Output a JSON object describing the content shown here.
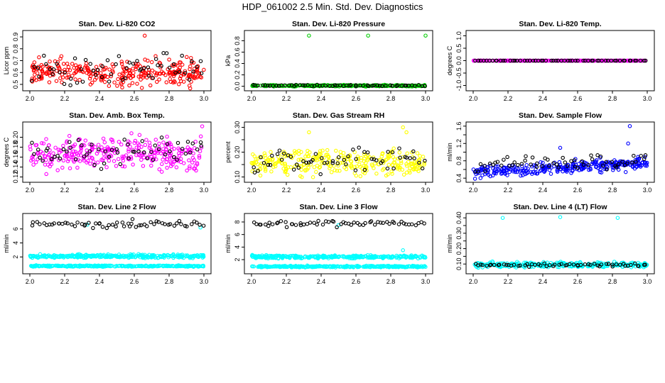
{
  "figure_title": "HDP_061002  2.5 Min. Std. Dev. Diagnostics",
  "colors": {
    "black": "#000000",
    "red": "#ff0000",
    "green": "#00cc00",
    "magenta": "#ff00ff",
    "yellow": "#ffff00",
    "blue": "#0000ff",
    "cyan": "#00ffff"
  },
  "chart_data": [
    {
      "type": "scatter",
      "title": "Stan. Dev. Li-820 CO2",
      "xlabel": "",
      "ylabel": "Licor ppm",
      "xlim": [
        2.0,
        3.0
      ],
      "ylim": [
        0.47,
        0.93
      ],
      "xticks": [
        "2.0",
        "2.2",
        "2.4",
        "2.6",
        "2.8",
        "3.0"
      ],
      "yticks": [
        0.5,
        0.6,
        0.7,
        0.8,
        0.9
      ],
      "ytick_labels": [
        "0.5",
        "0.6",
        "0.7",
        "0.8",
        "0.9"
      ],
      "series": [
        {
          "name": "bulk",
          "color": "red",
          "band": [
            0.6,
            0.05
          ],
          "extra": [
            [
              2.66,
              0.91
            ]
          ]
        },
        {
          "name": "highlight",
          "color": "black",
          "band": [
            0.62,
            0.06
          ],
          "extra": []
        }
      ]
    },
    {
      "type": "scatter",
      "title": "Stan. Dev. Li-820 Pressure",
      "xlabel": "",
      "ylabel": "kPa",
      "xlim": [
        2.0,
        3.0
      ],
      "ylim": [
        -0.03,
        0.93
      ],
      "xticks": [
        "2.0",
        "2.2",
        "2.4",
        "2.6",
        "2.8",
        "3.0"
      ],
      "yticks": [
        0.0,
        0.2,
        0.4,
        0.6,
        0.8
      ],
      "ytick_labels": [
        "0.0",
        "0.2",
        "0.4",
        "0.6",
        "0.8"
      ],
      "series": [
        {
          "name": "bulk",
          "color": "green",
          "band": [
            0.01,
            0.006
          ],
          "extra": [
            [
              2.33,
              0.89
            ],
            [
              2.67,
              0.89
            ],
            [
              3.0,
              0.89
            ]
          ]
        },
        {
          "name": "highlight",
          "color": "black",
          "band": [
            0.012,
            0.006
          ],
          "extra": []
        }
      ]
    },
    {
      "type": "scatter",
      "title": "Stan. Dev. Li-820 Temp.",
      "xlabel": "",
      "ylabel": "degrees C",
      "xlim": [
        2.0,
        3.0
      ],
      "ylim": [
        -1.1,
        1.1
      ],
      "xticks": [
        "2.0",
        "2.2",
        "2.4",
        "2.6",
        "2.8",
        "3.0"
      ],
      "yticks": [
        -1.0,
        -0.5,
        0.0,
        0.5,
        1.0
      ],
      "ytick_labels": [
        "-1.0",
        "-0.5",
        "0.0",
        "0.5",
        "1.0"
      ],
      "series": [
        {
          "name": "bulk",
          "color": "magenta",
          "band": [
            0.0,
            0.0
          ],
          "extra": []
        },
        {
          "name": "highlight",
          "color": "black",
          "band": [
            0.0,
            0.0
          ],
          "extra": []
        }
      ]
    },
    {
      "type": "scatter",
      "title": "Stan. Dev. Amb. Box Temp.",
      "xlabel": "",
      "ylabel": "degrees C",
      "xlim": [
        2.0,
        3.0
      ],
      "ylim": [
        0.115,
        0.225
      ],
      "xticks": [
        "2.0",
        "2.2",
        "2.4",
        "2.6",
        "2.8",
        "3.0"
      ],
      "yticks": [
        0.12,
        0.14,
        0.16,
        0.18,
        0.2
      ],
      "ytick_labels": [
        "0.12",
        "0.14",
        "0.16",
        "0.18",
        "0.20"
      ],
      "series": [
        {
          "name": "bulk",
          "color": "magenta",
          "band": [
            0.165,
            0.016
          ],
          "extra": [
            [
              2.99,
              0.222
            ]
          ]
        },
        {
          "name": "highlight",
          "color": "black",
          "band": [
            0.17,
            0.014
          ],
          "extra": []
        }
      ]
    },
    {
      "type": "scatter",
      "title": "Stan. Dev. Gas Stream RH",
      "xlabel": "",
      "ylabel": "percent",
      "xlim": [
        2.0,
        3.0
      ],
      "ylim": [
        0.09,
        0.31
      ],
      "xticks": [
        "2.0",
        "2.2",
        "2.4",
        "2.6",
        "2.8",
        "3.0"
      ],
      "yticks": [
        0.1,
        0.15,
        0.2,
        0.25,
        0.3
      ],
      "ytick_labels": [
        "0.10",
        "",
        "0.20",
        "",
        "0.30"
      ],
      "series": [
        {
          "name": "bulk",
          "color": "yellow",
          "band": [
            0.16,
            0.025
          ],
          "extra": [
            [
              2.87,
              0.3
            ],
            [
              2.89,
              0.28
            ],
            [
              2.33,
              0.28
            ]
          ]
        },
        {
          "name": "highlight",
          "color": "black",
          "band": [
            0.165,
            0.025
          ],
          "extra": []
        }
      ]
    },
    {
      "type": "scatter",
      "title": "Stan. Dev. Sample Flow",
      "xlabel": "",
      "ylabel": "ml/min",
      "xlim": [
        2.0,
        3.0
      ],
      "ylim": [
        0.37,
        1.63
      ],
      "xticks": [
        "2.0",
        "2.2",
        "2.4",
        "2.6",
        "2.8",
        "3.0"
      ],
      "yticks": [
        0.4,
        0.6,
        0.8,
        1.0,
        1.2,
        1.4,
        1.6
      ],
      "ytick_labels": [
        "0.4",
        "",
        "0.8",
        "",
        "1.2",
        "",
        "1.6"
      ],
      "series": [
        {
          "name": "bulk",
          "color": "blue",
          "band": [
            0.55,
            0.07
          ],
          "extra": [
            [
              2.9,
              1.6
            ],
            [
              2.89,
              1.2
            ],
            [
              2.5,
              1.1
            ]
          ]
        },
        {
          "name": "highlight",
          "color": "black",
          "band": [
            0.68,
            0.09
          ],
          "extra": []
        }
      ]
    },
    {
      "type": "scatter",
      "title": "Stan. Dev. Line 2 Flow",
      "xlabel": "",
      "ylabel": "ml/min",
      "xlim": [
        2.0,
        3.0
      ],
      "ylim": [
        0.0,
        7.8
      ],
      "xticks": [
        "2.0",
        "2.2",
        "2.4",
        "2.6",
        "2.8",
        "3.0"
      ],
      "yticks": [
        2,
        4,
        6
      ],
      "ytick_labels": [
        "2",
        "4",
        "6"
      ],
      "series": [
        {
          "name": "upper band",
          "color": "cyan",
          "band": [
            2.1,
            0.12
          ],
          "extra": [
            [
              2.98,
              6.2
            ],
            [
              2.33,
              6.6
            ]
          ]
        },
        {
          "name": "lower band",
          "color": "cyan",
          "band": [
            0.7,
            0.05
          ],
          "extra": []
        },
        {
          "name": "highlight",
          "color": "black",
          "band": [
            6.65,
            0.22
          ],
          "extra": [
            [
              2.59,
              7.4
            ]
          ]
        }
      ]
    },
    {
      "type": "scatter",
      "title": "Stan. Dev. Line 3 Flow",
      "xlabel": "",
      "ylabel": "ml/min",
      "xlim": [
        2.0,
        3.0
      ],
      "ylim": [
        0.2,
        8.9
      ],
      "xticks": [
        "2.0",
        "2.2",
        "2.4",
        "2.6",
        "2.8",
        "3.0"
      ],
      "yticks": [
        2,
        4,
        6,
        8
      ],
      "ytick_labels": [
        "2",
        "4",
        "6",
        "8"
      ],
      "series": [
        {
          "name": "upper band",
          "color": "cyan",
          "band": [
            2.45,
            0.13
          ],
          "extra": [
            [
              2.87,
              3.5
            ],
            [
              2.5,
              7.5
            ]
          ]
        },
        {
          "name": "lower band",
          "color": "cyan",
          "band": [
            0.9,
            0.06
          ],
          "extra": []
        },
        {
          "name": "highlight",
          "color": "black",
          "band": [
            7.7,
            0.25
          ],
          "extra": []
        }
      ]
    },
    {
      "type": "scatter",
      "title": "Stan. Dev. Line 4 (LT) Flow",
      "xlabel": "",
      "ylabel": "ml/min",
      "xlim": [
        2.0,
        3.0
      ],
      "ylim": [
        0.055,
        0.41
      ],
      "xticks": [
        "2.0",
        "2.2",
        "2.4",
        "2.6",
        "2.8",
        "3.0"
      ],
      "yticks": [
        0.1,
        0.15,
        0.2,
        0.25,
        0.3,
        0.35,
        0.4
      ],
      "ytick_labels": [
        "0.10",
        "",
        "0.20",
        "",
        "0.30",
        "",
        "0.40"
      ],
      "series": [
        {
          "name": "bulk",
          "color": "cyan",
          "band": [
            0.095,
            0.008
          ],
          "extra": [
            [
              2.17,
              0.4
            ],
            [
              2.5,
              0.405
            ],
            [
              2.83,
              0.4
            ]
          ]
        },
        {
          "name": "highlight",
          "color": "black",
          "band": [
            0.093,
            0.006
          ],
          "extra": []
        }
      ]
    }
  ]
}
